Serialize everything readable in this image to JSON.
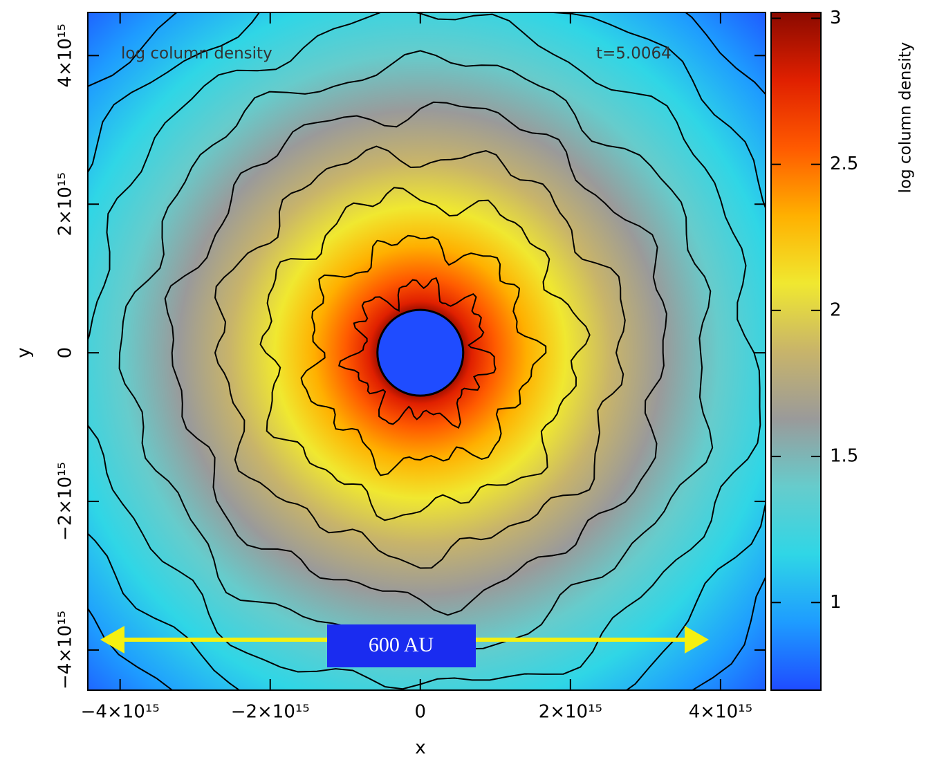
{
  "chart_data": {
    "type": "image",
    "title": "log column density",
    "annotation": "t=5.0064",
    "scale_label": "600 AU",
    "xlabel": "x",
    "ylabel": "y",
    "colorbar_label": "log column density",
    "xlim": [
      -4430000000000000.0,
      4600000000000000.0
    ],
    "xticks": [
      {
        "value": -4000000000000000.0,
        "label": "−4×10¹⁵"
      },
      {
        "value": -2000000000000000.0,
        "label": "−2×10¹⁵"
      },
      0,
      {
        "value": 2000000000000000.0,
        "label": "2×10¹⁵"
      },
      {
        "value": 4000000000000000.0,
        "label": "4×10¹⁵"
      }
    ],
    "ylim": [
      -4540000000000000.0,
      4580000000000000.0
    ],
    "yticks": [
      {
        "value": -4000000000000000.0,
        "label": "−4×10¹⁵"
      },
      {
        "value": -2000000000000000.0,
        "label": "−2×10¹⁵"
      },
      0,
      {
        "value": 2000000000000000.0,
        "label": "2×10¹⁵"
      },
      {
        "value": 4000000000000000.0,
        "label": "4×10¹⁵"
      }
    ],
    "clim": [
      0.7,
      3.02
    ],
    "cticks": [
      1,
      1.5,
      2,
      2.5,
      3
    ],
    "colormap": [
      "#1f4cff",
      "#1e9cff",
      "#2fd6e6",
      "#66cccc",
      "#9a9a9a",
      "#c8b46a",
      "#f0e830",
      "#ffb000",
      "#ff5a00",
      "#e02000",
      "#8b0a00"
    ]
  }
}
